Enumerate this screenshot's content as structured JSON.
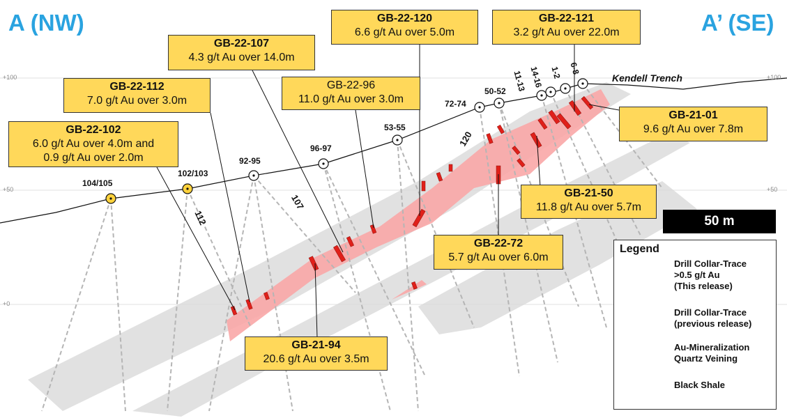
{
  "section": {
    "end_left": "A (NW)",
    "end_right": "A’ (SE)",
    "elevations": [
      "+100",
      "+50",
      "+0"
    ],
    "trench_label": "Kendell Trench",
    "scale_bar": "50 m"
  },
  "collars_this_release": [
    "104/105",
    "102/103"
  ],
  "collars_previous": [
    "92-95",
    "96-97",
    "53-55",
    "72-74",
    "50-52",
    "11-13",
    "14-16",
    "1-2",
    "6-8"
  ],
  "trace_labels": [
    "112",
    "107",
    "120"
  ],
  "callouts": [
    {
      "hole": "GB-22-102",
      "grade": "6.0 g/t Au over 4.0m and",
      "grade2": "0.9 g/t Au over 2.0m"
    },
    {
      "hole": "GB-22-112",
      "grade": "7.0 g/t Au over 3.0m"
    },
    {
      "hole": "GB-22-107",
      "grade": "4.3 g/t Au over 14.0m"
    },
    {
      "hole": "GB-22-96",
      "grade": "11.0 g/t Au over 3.0m"
    },
    {
      "hole": "GB-22-120",
      "grade": "6.6 g/t Au over 5.0m"
    },
    {
      "hole": "GB-22-121",
      "grade": "3.2 g/t Au over 22.0m"
    },
    {
      "hole": "GB-21-01",
      "grade": "9.6 g/t Au over 7.8m"
    },
    {
      "hole": "GB-21-50",
      "grade": "11.8 g/t Au over 5.7m"
    },
    {
      "hole": "GB-22-72",
      "grade": "5.7 g/t Au over 6.0m"
    },
    {
      "hole": "GB-21-94",
      "grade": "20.6 g/t Au over 3.5m"
    }
  ],
  "legend": {
    "title": "Legend",
    "items": [
      {
        "label": "Drill Collar-Trace",
        "label2": ">0.5 g/t Au",
        "label3": "(This release)"
      },
      {
        "label": "Drill Collar-Trace",
        "label2": "(previous release)"
      },
      {
        "label": "Au-Mineralization",
        "label2": "Quartz Veining"
      },
      {
        "label": "Black Shale"
      }
    ]
  },
  "colors": {
    "title_blue": "#2aa3e0",
    "callout_fill": "#ffd85a",
    "mineralization": "#f9a7a7",
    "intercept_red": "#e0201a",
    "shale": "#dcdcdc",
    "new_collar": "#ffd23c"
  }
}
